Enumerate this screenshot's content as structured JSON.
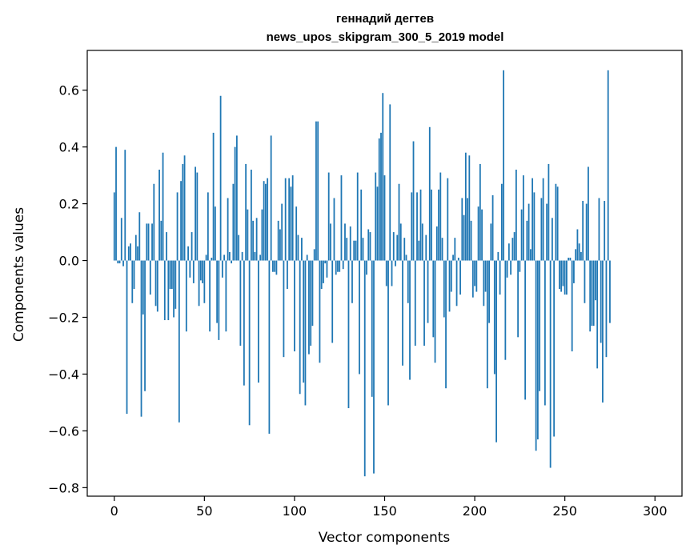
{
  "chart_data": {
    "type": "bar",
    "title_line1": "геннадий дегтев",
    "title_line2": "news_upos_skipgram_300_5_2019 model",
    "xlabel": "Vector components",
    "ylabel": "Components values",
    "xlim": [
      -15,
      315
    ],
    "ylim": [
      -0.83,
      0.74
    ],
    "xticks": [
      0,
      50,
      100,
      150,
      200,
      250,
      300
    ],
    "xtick_labels": [
      "0",
      "50",
      "100",
      "150",
      "200",
      "250",
      "300"
    ],
    "yticks": [
      -0.8,
      -0.6,
      -0.4,
      -0.2,
      0.0,
      0.2,
      0.4,
      0.6
    ],
    "ytick_labels": [
      "−0.8",
      "−0.6",
      "−0.4",
      "−0.2",
      "0.0",
      "0.2",
      "0.4",
      "0.6"
    ],
    "bar_color": "#1f77b4",
    "grid": false,
    "values": [
      0.24,
      0.4,
      -0.01,
      -0.01,
      0.15,
      -0.02,
      0.39,
      -0.54,
      0.05,
      0.06,
      -0.15,
      -0.1,
      0.09,
      0.05,
      0.17,
      -0.55,
      -0.19,
      -0.46,
      0.13,
      0.13,
      -0.12,
      0.13,
      0.27,
      -0.16,
      -0.18,
      0.32,
      0.14,
      0.38,
      -0.21,
      0.1,
      -0.21,
      -0.1,
      -0.1,
      -0.2,
      -0.17,
      0.24,
      -0.57,
      0.28,
      0.34,
      0.37,
      -0.25,
      0.05,
      -0.06,
      0.1,
      -0.08,
      0.33,
      0.31,
      -0.16,
      -0.07,
      -0.08,
      -0.15,
      0.02,
      0.24,
      -0.25,
      0.01,
      0.45,
      0.19,
      -0.22,
      -0.28,
      0.58,
      -0.06,
      0.02,
      -0.25,
      0.22,
      0.03,
      -0.01,
      0.27,
      0.4,
      0.44,
      0.09,
      -0.3,
      0.03,
      -0.44,
      0.34,
      0.18,
      -0.58,
      0.32,
      0.14,
      0.03,
      0.15,
      -0.43,
      0.02,
      0.18,
      0.28,
      0.27,
      0.29,
      -0.61,
      0.44,
      -0.04,
      -0.04,
      -0.05,
      0.14,
      0.11,
      0.2,
      -0.34,
      0.29,
      -0.1,
      0.29,
      0.26,
      0.3,
      -0.32,
      0.19,
      0.09,
      -0.47,
      0.08,
      -0.43,
      -0.51,
      0.02,
      -0.33,
      -0.3,
      -0.23,
      0.04,
      0.49,
      0.49,
      -0.36,
      -0.1,
      -0.08,
      -0.01,
      -0.06,
      0.31,
      0.13,
      -0.29,
      0.22,
      -0.05,
      -0.04,
      -0.04,
      0.3,
      -0.03,
      0.13,
      0.08,
      -0.52,
      0.12,
      -0.15,
      0.07,
      0.07,
      0.31,
      -0.4,
      0.25,
      0.08,
      -0.76,
      -0.05,
      0.11,
      0.1,
      -0.48,
      -0.75,
      0.31,
      0.26,
      0.43,
      0.45,
      0.59,
      0.3,
      -0.09,
      -0.51,
      0.55,
      -0.09,
      0.1,
      -0.02,
      0.09,
      0.27,
      0.13,
      -0.37,
      0.08,
      0.02,
      -0.15,
      -0.42,
      0.24,
      0.42,
      -0.3,
      0.24,
      0.07,
      0.25,
      0.13,
      -0.3,
      0.09,
      -0.22,
      0.47,
      0.25,
      -0.27,
      -0.36,
      0.12,
      0.25,
      0.31,
      0.08,
      -0.2,
      -0.45,
      0.29,
      -0.18,
      -0.11,
      0.02,
      0.08,
      -0.16,
      0.01,
      -0.12,
      0.22,
      0.16,
      0.38,
      0.22,
      0.37,
      0.14,
      -0.13,
      -0.09,
      -0.11,
      0.19,
      0.34,
      0.18,
      -0.16,
      -0.11,
      -0.45,
      -0.22,
      0.13,
      0.23,
      -0.4,
      -0.64,
      0.03,
      -0.12,
      0.27,
      0.67,
      -0.35,
      -0.06,
      0.06,
      -0.05,
      0.08,
      0.1,
      0.32,
      -0.27,
      -0.04,
      0.18,
      0.3,
      -0.49,
      0.14,
      0.2,
      0.04,
      0.29,
      0.24,
      -0.67,
      -0.63,
      -0.46,
      0.22,
      0.29,
      -0.51,
      0.2,
      0.34,
      -0.73,
      0.15,
      -0.62,
      0.27,
      0.26,
      -0.1,
      -0.11,
      -0.09,
      -0.12,
      -0.12,
      0.01,
      0.01,
      -0.32,
      -0.08,
      0.04,
      0.11,
      0.06,
      0.03,
      0.21,
      -0.15,
      0.2,
      0.33,
      -0.25,
      -0.23,
      -0.23,
      -0.14,
      -0.38,
      0.22,
      -0.29,
      -0.5,
      0.21,
      -0.34,
      0.67,
      -0.22
    ]
  }
}
